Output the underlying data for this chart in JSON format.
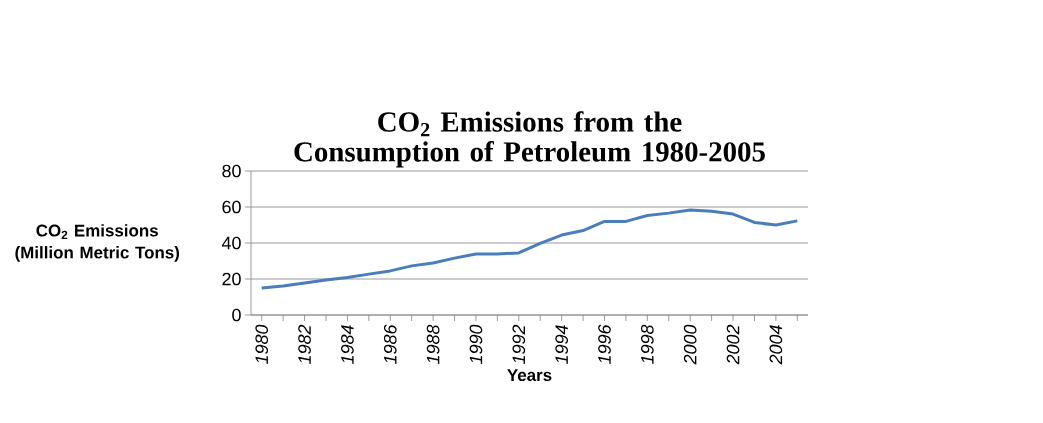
{
  "chart_data": {
    "type": "line",
    "title": "CO$_{2}$ Emissions from the Consumption of Petroleum 1980-2005",
    "xlabel": "Years",
    "ylabel": "CO$_{2}$ Emissions (Million Metric Tons)",
    "categories": [
      "1980",
      null,
      "1982",
      null,
      "1984",
      null,
      "1986",
      null,
      "1988",
      null,
      "1990",
      null,
      "1992",
      null,
      "1994",
      null,
      "1996",
      null,
      "1998",
      null,
      "2000",
      null,
      "2002",
      null,
      "2004",
      null
    ],
    "series": [
      {
        "color": "#4a7ebb",
        "values": [
          15.0,
          16.1,
          17.8,
          19.4,
          20.8,
          22.7,
          24.5,
          27.3,
          28.9,
          31.6,
          33.9,
          33.9,
          34.5,
          39.8,
          44.4,
          46.9,
          52.0,
          52.0,
          55.3,
          56.6,
          58.3,
          57.7,
          56.1,
          51.4,
          50.0,
          52.3
        ]
      }
    ],
    "ylim": [
      0,
      80
    ],
    "yticks": [
      0,
      20,
      40,
      60,
      80
    ],
    "grid": "y",
    "marker": "none",
    "line_style": "solid"
  }
}
